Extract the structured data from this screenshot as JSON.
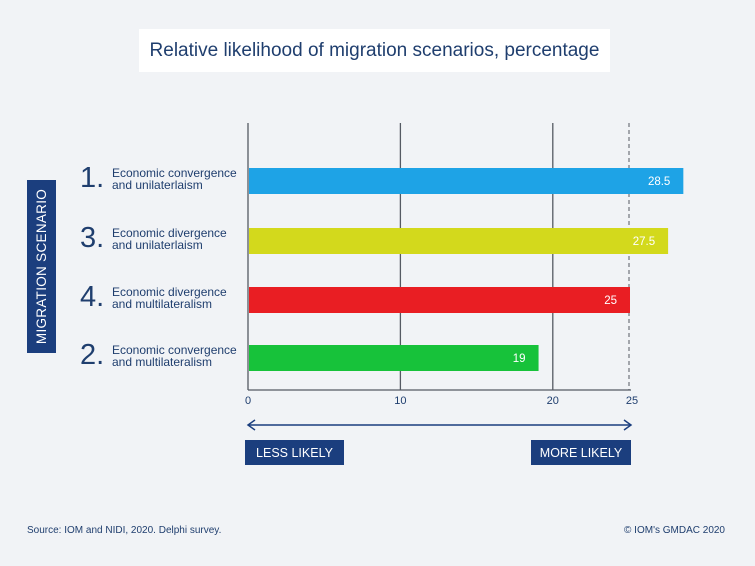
{
  "chart_data": {
    "type": "bar",
    "orientation": "horizontal",
    "title": "Relative likelihood of migration scenarios, percentage",
    "ylabel": "MIGRATION SCENARIO",
    "xlim": [
      0,
      25
    ],
    "xticks": [
      0,
      10,
      20,
      25
    ],
    "reference_line": 25,
    "categories": [
      {
        "number": "1.",
        "line1": "Economic convergence",
        "line2": "and unilaterlaism",
        "value": 28.5,
        "value_label": "28.5",
        "color": "#1ea3e6"
      },
      {
        "number": "3.",
        "line1": "Economic divergence",
        "line2": "and unilaterlaism",
        "value": 27.5,
        "value_label": "27.5",
        "color": "#d3d91c"
      },
      {
        "number": "4.",
        "line1": "Economic divergence",
        "line2": "and multilateralism",
        "value": 25,
        "value_label": "25",
        "color": "#e91e23"
      },
      {
        "number": "2.",
        "line1": "Economic convergence",
        "line2": "and multilateralism",
        "value": 19,
        "value_label": "19",
        "color": "#17c23a"
      }
    ],
    "axis_annotation": {
      "less": "LESS LIKELY",
      "more": "MORE LIKELY"
    }
  },
  "footer": {
    "source": "Source: IOM and NIDI, 2020. Delphi survey.",
    "credit": "© IOM's GMDAC 2020"
  }
}
